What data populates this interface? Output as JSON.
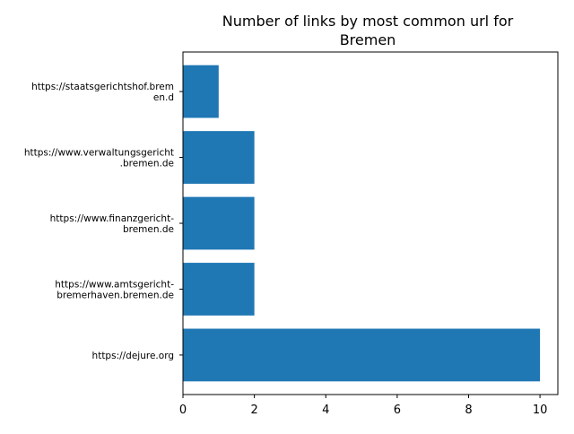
{
  "chart_data": {
    "type": "bar",
    "orientation": "horizontal",
    "title_lines": [
      "Number of links by most common url for",
      "Bremen"
    ],
    "xlabel": "",
    "ylabel": "",
    "categories": [
      [
        "https://dejure.org"
      ],
      [
        "https://www.amtsgericht-",
        "bremerhaven.bremen.de"
      ],
      [
        "https://www.finanzgericht-",
        "bremen.de"
      ],
      [
        "https://www.verwaltungsgericht",
        ".bremen.de"
      ],
      [
        "https://staatsgerichtshof.brem",
        "en.d"
      ]
    ],
    "values": [
      10,
      2,
      2,
      2,
      1
    ],
    "xlim": [
      0,
      10.5
    ],
    "xticks": [
      0,
      2,
      4,
      6,
      8,
      10
    ],
    "bar_color": "#1f77b4",
    "grid": false,
    "legend": "none"
  }
}
